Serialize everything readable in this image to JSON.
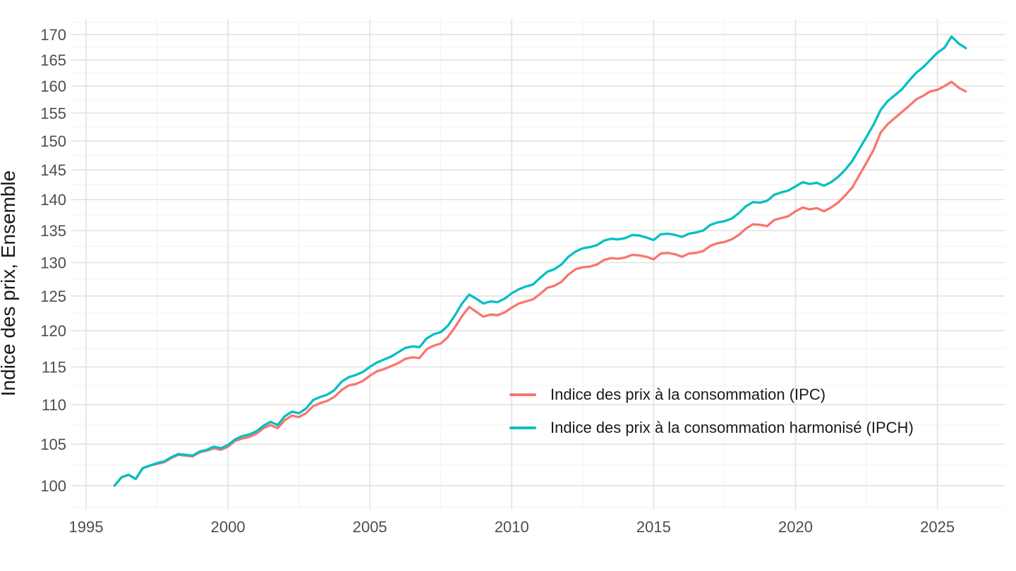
{
  "chart": {
    "y_axis_title": "Indice des prix, Ensemble",
    "legend": {
      "items": [
        {
          "label": "Indice des prix à la consommation (IPC)",
          "color": "#F8766D"
        },
        {
          "label": "Indice des prix à la consommation harmonisé (IPCH)",
          "color": "#00BFC4"
        }
      ]
    }
  },
  "chart_data": {
    "type": "line",
    "title": "",
    "xlabel": "",
    "ylabel": "Indice des prix, Ensemble",
    "y_scale": "log",
    "grid": "major+minor",
    "legend_position": "inside middle-right",
    "x_start": 1996.0,
    "x_step": 0.25,
    "x_end": 2026.0,
    "x_ticks": [
      1995,
      2000,
      2005,
      2010,
      2015,
      2020,
      2025
    ],
    "y_ticks": [
      100,
      105,
      110,
      115,
      120,
      125,
      130,
      135,
      140,
      145,
      150,
      155,
      160,
      165,
      170
    ],
    "x_axis_range": [
      1994.5,
      2027.6
    ],
    "y_axis_range": [
      97.5,
      172.5
    ],
    "series": [
      {
        "name": "Indice des prix à la consommation (IPC)",
        "color": "#F8766D",
        "values": [
          100.0,
          101.0,
          101.3,
          100.8,
          102.1,
          102.4,
          102.6,
          102.8,
          103.3,
          103.7,
          103.6,
          103.5,
          104.0,
          104.2,
          104.5,
          104.3,
          104.7,
          105.4,
          105.7,
          105.9,
          106.3,
          107.0,
          107.4,
          107.0,
          108.0,
          108.6,
          108.4,
          108.9,
          109.8,
          110.2,
          110.5,
          111.0,
          111.9,
          112.5,
          112.7,
          113.1,
          113.8,
          114.4,
          114.7,
          115.1,
          115.5,
          116.1,
          116.3,
          116.2,
          117.4,
          117.9,
          118.2,
          119.1,
          120.5,
          122.1,
          123.4,
          122.7,
          122.0,
          122.3,
          122.2,
          122.6,
          123.3,
          123.9,
          124.2,
          124.5,
          125.3,
          126.2,
          126.5,
          127.1,
          128.2,
          129.0,
          129.3,
          129.4,
          129.7,
          130.4,
          130.7,
          130.6,
          130.8,
          131.2,
          131.1,
          130.9,
          130.5,
          131.4,
          131.5,
          131.3,
          130.9,
          131.4,
          131.5,
          131.8,
          132.6,
          133.0,
          133.2,
          133.6,
          134.3,
          135.3,
          136.0,
          135.9,
          135.7,
          136.7,
          137.0,
          137.3,
          138.1,
          138.7,
          138.4,
          138.6,
          138.1,
          138.7,
          139.5,
          140.7,
          142.0,
          144.1,
          146.2,
          148.4,
          151.5,
          153.0,
          154.1,
          155.2,
          156.3,
          157.5,
          158.2,
          159.0,
          159.3,
          160.0,
          160.8,
          159.7,
          159.0
        ]
      },
      {
        "name": "Indice des prix à la consommation harmonisé (IPCH)",
        "color": "#00BFC4",
        "values": [
          100.0,
          101.0,
          101.3,
          100.8,
          102.1,
          102.4,
          102.7,
          102.9,
          103.4,
          103.8,
          103.7,
          103.6,
          104.1,
          104.3,
          104.7,
          104.5,
          104.9,
          105.6,
          106.0,
          106.2,
          106.6,
          107.3,
          107.8,
          107.4,
          108.5,
          109.1,
          108.9,
          109.5,
          110.6,
          111.0,
          111.3,
          111.9,
          113.0,
          113.6,
          113.9,
          114.3,
          115.0,
          115.6,
          116.0,
          116.4,
          117.0,
          117.6,
          117.8,
          117.7,
          118.9,
          119.5,
          119.8,
          120.7,
          122.2,
          123.9,
          125.2,
          124.6,
          123.9,
          124.2,
          124.1,
          124.6,
          125.4,
          126.0,
          126.4,
          126.7,
          127.7,
          128.6,
          129.0,
          129.7,
          130.9,
          131.7,
          132.2,
          132.4,
          132.7,
          133.4,
          133.7,
          133.6,
          133.8,
          134.3,
          134.2,
          133.9,
          133.5,
          134.4,
          134.5,
          134.3,
          134.0,
          134.5,
          134.7,
          135.0,
          135.9,
          136.3,
          136.5,
          136.9,
          137.8,
          138.9,
          139.6,
          139.5,
          139.8,
          140.8,
          141.2,
          141.5,
          142.2,
          142.9,
          142.6,
          142.8,
          142.3,
          142.9,
          143.8,
          145.0,
          146.5,
          148.6,
          150.7,
          152.9,
          155.6,
          157.2,
          158.3,
          159.4,
          161.0,
          162.5,
          163.6,
          165.0,
          166.4,
          167.4,
          169.6,
          168.2,
          167.3
        ]
      }
    ]
  }
}
